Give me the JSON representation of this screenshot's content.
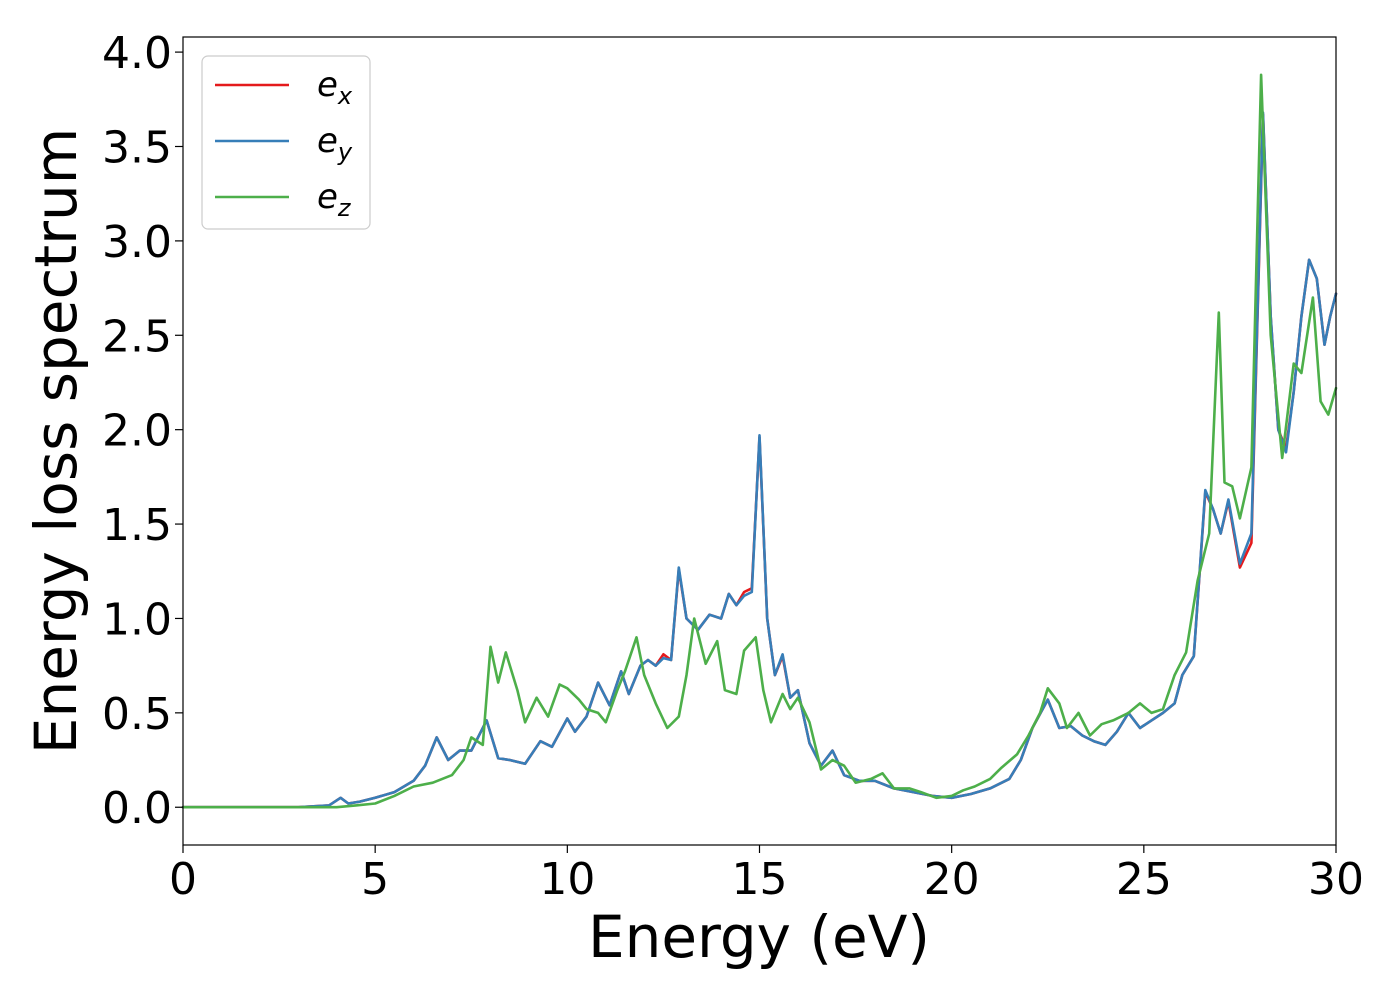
{
  "chart_data": {
    "type": "line",
    "title": "",
    "xlabel": "Energy (eV)",
    "ylabel": "Energy loss spectrum",
    "xlim": [
      0,
      30
    ],
    "ylim": [
      -0.2,
      4.08
    ],
    "xticks": [
      0,
      5,
      10,
      15,
      20,
      25,
      30
    ],
    "xtick_labels": [
      "0",
      "5",
      "10",
      "15",
      "20",
      "25",
      "30"
    ],
    "yticks": [
      0.0,
      0.5,
      1.0,
      1.5,
      2.0,
      2.5,
      3.0,
      3.5,
      4.0
    ],
    "ytick_labels": [
      "0.0",
      "0.5",
      "1.0",
      "1.5",
      "2.0",
      "2.5",
      "3.0",
      "3.5",
      "4.0"
    ],
    "grid": false,
    "legend_position": "top-left",
    "series": [
      {
        "name": "e_x",
        "legend_main": "e",
        "legend_sub": "x",
        "color": "#e41a1c",
        "x": [
          0,
          2,
          3,
          3.8,
          4.1,
          4.3,
          4.6,
          5.0,
          5.5,
          6.0,
          6.3,
          6.6,
          6.9,
          7.2,
          7.5,
          7.9,
          8.2,
          8.5,
          8.9,
          9.3,
          9.6,
          10.0,
          10.2,
          10.5,
          10.8,
          11.1,
          11.4,
          11.6,
          11.9,
          12.1,
          12.3,
          12.5,
          12.7,
          12.9,
          13.1,
          13.4,
          13.7,
          14.0,
          14.2,
          14.4,
          14.6,
          14.8,
          15.0,
          15.2,
          15.4,
          15.6,
          15.8,
          16.0,
          16.3,
          16.6,
          16.9,
          17.2,
          17.6,
          18.0,
          18.5,
          19.0,
          19.5,
          20.0,
          20.5,
          21.0,
          21.5,
          21.8,
          22.1,
          22.5,
          22.8,
          23.1,
          23.4,
          23.7,
          24.0,
          24.3,
          24.6,
          24.9,
          25.2,
          25.5,
          25.8,
          26.0,
          26.3,
          26.6,
          26.8,
          27.0,
          27.2,
          27.5,
          27.8,
          28.1,
          28.3,
          28.5,
          28.7,
          28.9,
          29.1,
          29.3,
          29.5,
          29.7,
          29.85,
          30.0
        ],
        "values": [
          0.0,
          0.0,
          0.0,
          0.01,
          0.05,
          0.02,
          0.03,
          0.05,
          0.08,
          0.14,
          0.22,
          0.37,
          0.25,
          0.3,
          0.3,
          0.46,
          0.26,
          0.25,
          0.23,
          0.35,
          0.32,
          0.47,
          0.4,
          0.48,
          0.66,
          0.54,
          0.72,
          0.6,
          0.75,
          0.78,
          0.75,
          0.81,
          0.78,
          1.26,
          1.0,
          0.94,
          1.02,
          1.0,
          1.13,
          1.07,
          1.14,
          1.16,
          1.96,
          1.0,
          0.7,
          0.8,
          0.58,
          0.62,
          0.34,
          0.22,
          0.3,
          0.17,
          0.14,
          0.14,
          0.1,
          0.08,
          0.06,
          0.05,
          0.07,
          0.1,
          0.15,
          0.25,
          0.42,
          0.57,
          0.42,
          0.43,
          0.38,
          0.35,
          0.33,
          0.4,
          0.5,
          0.42,
          0.46,
          0.5,
          0.55,
          0.7,
          0.8,
          1.67,
          1.58,
          1.45,
          1.62,
          1.27,
          1.4,
          3.67,
          2.6,
          2.0,
          1.9,
          2.2,
          2.6,
          2.9,
          2.8,
          2.45,
          2.6,
          2.72
        ]
      },
      {
        "name": "e_y",
        "legend_main": "e",
        "legend_sub": "y",
        "color": "#377eb8",
        "x": [
          0,
          2,
          3,
          3.8,
          4.1,
          4.3,
          4.6,
          5.0,
          5.5,
          6.0,
          6.3,
          6.6,
          6.9,
          7.2,
          7.5,
          7.9,
          8.2,
          8.5,
          8.9,
          9.3,
          9.6,
          10.0,
          10.2,
          10.5,
          10.8,
          11.1,
          11.4,
          11.6,
          11.9,
          12.1,
          12.3,
          12.5,
          12.7,
          12.9,
          13.1,
          13.4,
          13.7,
          14.0,
          14.2,
          14.4,
          14.6,
          14.8,
          15.0,
          15.2,
          15.4,
          15.6,
          15.8,
          16.0,
          16.3,
          16.6,
          16.9,
          17.2,
          17.6,
          18.0,
          18.5,
          19.0,
          19.5,
          20.0,
          20.5,
          21.0,
          21.5,
          21.8,
          22.1,
          22.5,
          22.8,
          23.1,
          23.4,
          23.7,
          24.0,
          24.3,
          24.6,
          24.9,
          25.2,
          25.5,
          25.8,
          26.0,
          26.3,
          26.6,
          26.8,
          27.0,
          27.2,
          27.5,
          27.8,
          28.1,
          28.3,
          28.5,
          28.7,
          28.9,
          29.1,
          29.3,
          29.5,
          29.7,
          29.85,
          30.0
        ],
        "values": [
          0.0,
          0.0,
          0.0,
          0.01,
          0.05,
          0.02,
          0.03,
          0.05,
          0.08,
          0.14,
          0.22,
          0.37,
          0.25,
          0.3,
          0.3,
          0.46,
          0.26,
          0.25,
          0.23,
          0.35,
          0.32,
          0.47,
          0.4,
          0.48,
          0.66,
          0.54,
          0.72,
          0.6,
          0.75,
          0.78,
          0.75,
          0.79,
          0.78,
          1.27,
          1.0,
          0.94,
          1.02,
          1.0,
          1.13,
          1.07,
          1.12,
          1.14,
          1.97,
          1.0,
          0.7,
          0.81,
          0.58,
          0.62,
          0.34,
          0.22,
          0.3,
          0.17,
          0.14,
          0.14,
          0.1,
          0.08,
          0.06,
          0.05,
          0.07,
          0.1,
          0.15,
          0.25,
          0.42,
          0.57,
          0.42,
          0.43,
          0.38,
          0.35,
          0.33,
          0.4,
          0.5,
          0.42,
          0.46,
          0.5,
          0.55,
          0.7,
          0.8,
          1.68,
          1.58,
          1.45,
          1.63,
          1.29,
          1.45,
          3.68,
          2.6,
          2.0,
          1.88,
          2.2,
          2.6,
          2.9,
          2.8,
          2.45,
          2.6,
          2.72
        ]
      },
      {
        "name": "e_z",
        "legend_main": "e",
        "legend_sub": "z",
        "color": "#4daf4a",
        "x": [
          0,
          2,
          3,
          4,
          4.5,
          5.0,
          5.5,
          6.0,
          6.5,
          7.0,
          7.3,
          7.5,
          7.8,
          8.0,
          8.2,
          8.4,
          8.7,
          8.9,
          9.2,
          9.5,
          9.8,
          10.0,
          10.3,
          10.5,
          10.8,
          11.0,
          11.3,
          11.5,
          11.8,
          12.0,
          12.3,
          12.6,
          12.9,
          13.1,
          13.3,
          13.6,
          13.9,
          14.1,
          14.4,
          14.6,
          14.9,
          15.1,
          15.3,
          15.6,
          15.8,
          16.0,
          16.3,
          16.6,
          16.9,
          17.2,
          17.5,
          17.9,
          18.2,
          18.5,
          18.9,
          19.2,
          19.6,
          20.0,
          20.3,
          20.6,
          21.0,
          21.3,
          21.7,
          22.0,
          22.3,
          22.5,
          22.8,
          23.0,
          23.3,
          23.6,
          23.9,
          24.2,
          24.6,
          24.9,
          25.2,
          25.5,
          25.8,
          26.1,
          26.4,
          26.7,
          26.95,
          27.1,
          27.3,
          27.5,
          27.8,
          28.05,
          28.3,
          28.6,
          28.9,
          29.1,
          29.4,
          29.6,
          29.8,
          30.0
        ],
        "values": [
          0.0,
          0.0,
          0.0,
          0.0,
          0.01,
          0.02,
          0.06,
          0.11,
          0.13,
          0.17,
          0.25,
          0.37,
          0.33,
          0.85,
          0.66,
          0.82,
          0.62,
          0.45,
          0.58,
          0.48,
          0.65,
          0.63,
          0.57,
          0.52,
          0.5,
          0.45,
          0.62,
          0.72,
          0.9,
          0.7,
          0.55,
          0.42,
          0.48,
          0.7,
          1.0,
          0.76,
          0.88,
          0.62,
          0.6,
          0.83,
          0.9,
          0.62,
          0.45,
          0.6,
          0.52,
          0.58,
          0.45,
          0.2,
          0.25,
          0.22,
          0.13,
          0.15,
          0.18,
          0.1,
          0.1,
          0.08,
          0.05,
          0.06,
          0.09,
          0.11,
          0.15,
          0.21,
          0.28,
          0.38,
          0.5,
          0.63,
          0.55,
          0.42,
          0.5,
          0.38,
          0.44,
          0.46,
          0.5,
          0.55,
          0.5,
          0.52,
          0.7,
          0.82,
          1.2,
          1.45,
          2.62,
          1.72,
          1.7,
          1.53,
          1.8,
          3.88,
          2.5,
          1.85,
          2.35,
          2.3,
          2.7,
          2.15,
          2.08,
          2.22
        ]
      }
    ]
  }
}
